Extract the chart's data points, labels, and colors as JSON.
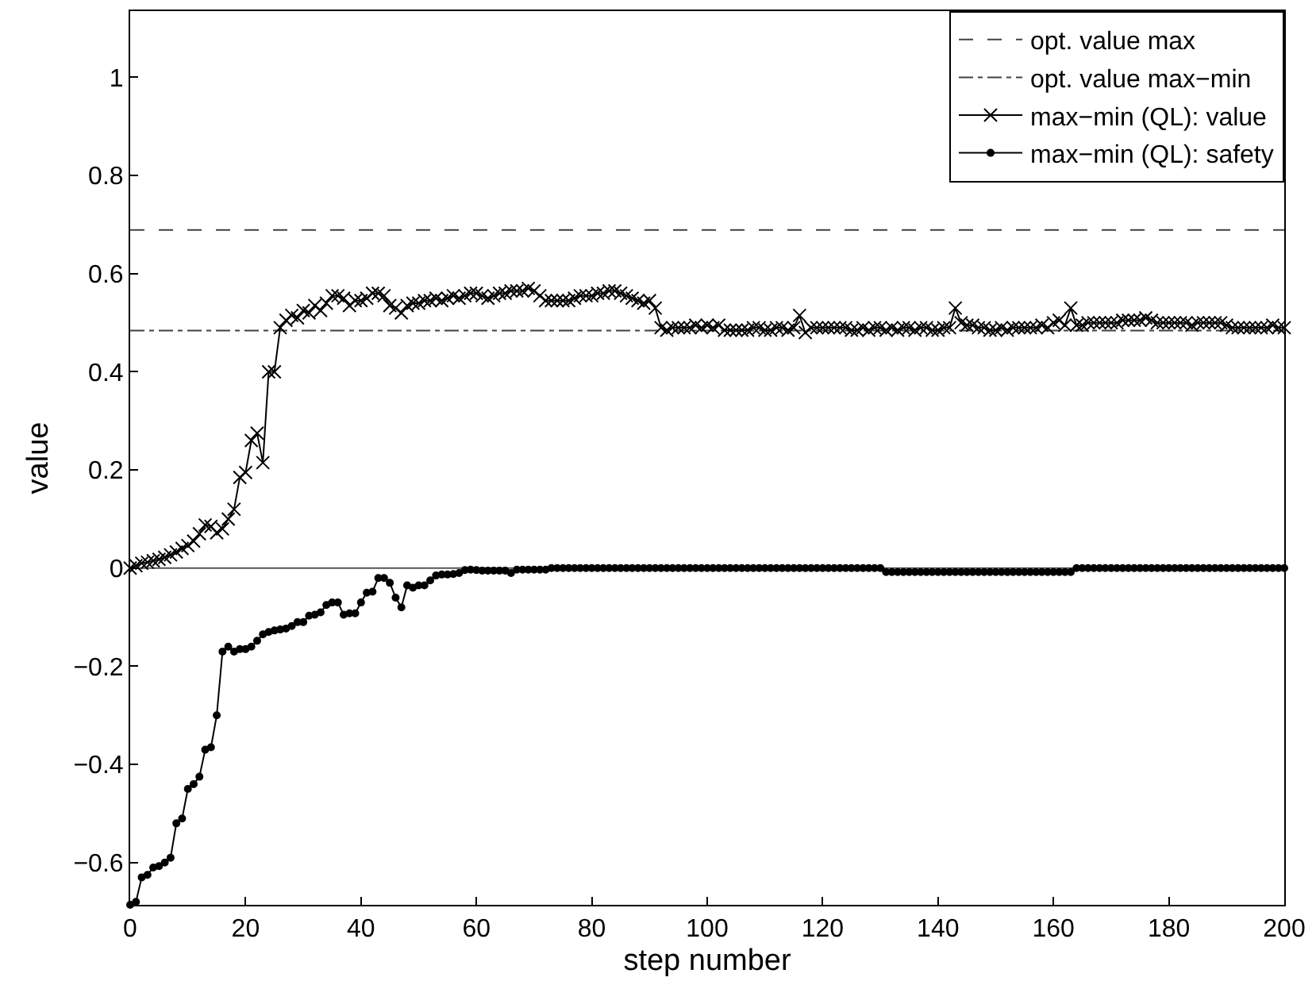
{
  "chart_data": {
    "type": "line",
    "xlabel": "step number",
    "ylabel": "value",
    "xlim": [
      0,
      200
    ],
    "xticks": [
      0,
      20,
      40,
      60,
      80,
      100,
      120,
      140,
      160,
      180,
      200
    ],
    "ylim": [
      -0.686,
      1.135
    ],
    "yticks": [
      {
        "value": -0.6,
        "label": "−0.6"
      },
      {
        "value": -0.4,
        "label": "−0.4"
      },
      {
        "value": -0.2,
        "label": "−0.2"
      },
      0,
      0.2,
      0.4,
      0.6,
      0.8,
      1
    ],
    "grid": false,
    "legend": "top right",
    "ref_lines": [
      {
        "axis": "y",
        "value": 0.689,
        "label": "opt. value max",
        "color": "#404040",
        "line_style": "dashed"
      },
      {
        "axis": "y",
        "value": 0.484,
        "label": "opt. value max−min",
        "color": "#404040",
        "line_style": "dashdot"
      },
      {
        "axis": "y",
        "value": 0,
        "color": "#555555",
        "line_style": "solid"
      }
    ],
    "x": [
      0,
      1,
      2,
      3,
      4,
      5,
      6,
      7,
      8,
      9,
      10,
      11,
      12,
      13,
      14,
      15,
      16,
      17,
      18,
      19,
      20,
      21,
      22,
      23,
      24,
      25,
      26,
      27,
      28,
      29,
      30,
      31,
      32,
      33,
      34,
      35,
      36,
      37,
      38,
      39,
      40,
      41,
      42,
      43,
      44,
      45,
      46,
      47,
      48,
      49,
      50,
      51,
      52,
      53,
      54,
      55,
      56,
      57,
      58,
      59,
      60,
      61,
      62,
      63,
      64,
      65,
      66,
      67,
      68,
      69,
      70,
      71,
      72,
      73,
      74,
      75,
      76,
      77,
      78,
      79,
      80,
      81,
      82,
      83,
      84,
      85,
      86,
      87,
      88,
      89,
      90,
      91,
      92,
      93,
      94,
      95,
      96,
      97,
      98,
      99,
      100,
      101,
      102,
      103,
      104,
      105,
      106,
      107,
      108,
      109,
      110,
      111,
      112,
      113,
      114,
      115,
      116,
      117,
      118,
      119,
      120,
      121,
      122,
      123,
      124,
      125,
      126,
      127,
      128,
      129,
      130,
      131,
      132,
      133,
      134,
      135,
      136,
      137,
      138,
      139,
      140,
      141,
      142,
      143,
      144,
      145,
      146,
      147,
      148,
      149,
      150,
      151,
      152,
      153,
      154,
      155,
      156,
      157,
      158,
      159,
      160,
      161,
      162,
      163,
      164,
      165,
      166,
      167,
      168,
      169,
      170,
      171,
      172,
      173,
      174,
      175,
      176,
      177,
      178,
      179,
      180,
      181,
      182,
      183,
      184,
      185,
      186,
      187,
      188,
      189,
      190,
      191,
      192,
      193,
      194,
      195,
      196,
      197,
      198,
      199,
      200
    ],
    "series": [
      {
        "name": "max−min (QL): value",
        "color": "#000000",
        "marker": "cross",
        "line_style": "solid",
        "values": [
          0,
          0.005,
          0.01,
          0.012,
          0.015,
          0.018,
          0.022,
          0.027,
          0.033,
          0.04,
          0.046,
          0.055,
          0.07,
          0.088,
          0.085,
          0.072,
          0.08,
          0.1,
          0.12,
          0.185,
          0.195,
          0.26,
          0.275,
          0.215,
          0.4,
          0.4,
          0.49,
          0.505,
          0.515,
          0.51,
          0.525,
          0.52,
          0.535,
          0.525,
          0.54,
          0.555,
          0.555,
          0.55,
          0.535,
          0.545,
          0.545,
          0.55,
          0.56,
          0.56,
          0.555,
          0.535,
          0.53,
          0.52,
          0.535,
          0.54,
          0.54,
          0.545,
          0.545,
          0.55,
          0.545,
          0.55,
          0.555,
          0.55,
          0.555,
          0.56,
          0.56,
          0.555,
          0.55,
          0.555,
          0.56,
          0.56,
          0.565,
          0.565,
          0.565,
          0.57,
          0.565,
          0.555,
          0.545,
          0.545,
          0.545,
          0.545,
          0.545,
          0.55,
          0.555,
          0.555,
          0.555,
          0.56,
          0.56,
          0.565,
          0.565,
          0.56,
          0.555,
          0.55,
          0.545,
          0.54,
          0.545,
          0.53,
          0.49,
          0.485,
          0.49,
          0.49,
          0.49,
          0.49,
          0.495,
          0.49,
          0.495,
          0.49,
          0.495,
          0.485,
          0.485,
          0.485,
          0.485,
          0.485,
          0.49,
          0.49,
          0.485,
          0.485,
          0.49,
          0.49,
          0.485,
          0.49,
          0.515,
          0.48,
          0.49,
          0.49,
          0.49,
          0.49,
          0.49,
          0.49,
          0.49,
          0.485,
          0.485,
          0.49,
          0.485,
          0.49,
          0.49,
          0.485,
          0.49,
          0.485,
          0.49,
          0.49,
          0.485,
          0.49,
          0.49,
          0.485,
          0.485,
          0.49,
          0.49,
          0.53,
          0.5,
          0.495,
          0.495,
          0.49,
          0.49,
          0.485,
          0.485,
          0.49,
          0.485,
          0.49,
          0.49,
          0.49,
          0.49,
          0.49,
          0.495,
          0.49,
          0.5,
          0.505,
          0.495,
          0.53,
          0.495,
          0.495,
          0.5,
          0.5,
          0.5,
          0.5,
          0.5,
          0.5,
          0.505,
          0.505,
          0.505,
          0.505,
          0.51,
          0.505,
          0.5,
          0.5,
          0.5,
          0.5,
          0.5,
          0.5,
          0.495,
          0.5,
          0.5,
          0.5,
          0.5,
          0.5,
          0.495,
          0.49,
          0.49,
          0.49,
          0.49,
          0.49,
          0.49,
          0.49,
          0.495,
          0.49,
          0.49
        ]
      },
      {
        "name": "max−min (QL): safety",
        "color": "#000000",
        "marker": "circle",
        "line_style": "solid",
        "values": [
          -0.686,
          -0.68,
          -0.63,
          -0.625,
          -0.61,
          -0.607,
          -0.6,
          -0.59,
          -0.52,
          -0.51,
          -0.45,
          -0.44,
          -0.425,
          -0.37,
          -0.365,
          -0.3,
          -0.17,
          -0.16,
          -0.17,
          -0.165,
          -0.165,
          -0.16,
          -0.148,
          -0.135,
          -0.13,
          -0.127,
          -0.125,
          -0.123,
          -0.118,
          -0.11,
          -0.11,
          -0.097,
          -0.095,
          -0.09,
          -0.075,
          -0.07,
          -0.07,
          -0.095,
          -0.092,
          -0.092,
          -0.07,
          -0.05,
          -0.048,
          -0.02,
          -0.02,
          -0.03,
          -0.06,
          -0.08,
          -0.035,
          -0.04,
          -0.035,
          -0.035,
          -0.025,
          -0.015,
          -0.013,
          -0.013,
          -0.012,
          -0.01,
          -0.004,
          -0.003,
          -0.004,
          -0.005,
          -0.005,
          -0.005,
          -0.005,
          -0.005,
          -0.01,
          -0.003,
          -0.003,
          -0.003,
          -0.003,
          -0.003,
          -0.003,
          0,
          0,
          0,
          0,
          0,
          0,
          0,
          0,
          0,
          0,
          0,
          0,
          0,
          0,
          0,
          0,
          0,
          0,
          0,
          0,
          0,
          0,
          0,
          0,
          0,
          0,
          0,
          0,
          0,
          0,
          0,
          0,
          0,
          0,
          0,
          0,
          0,
          0,
          0,
          0,
          0,
          0,
          0,
          0,
          0,
          0,
          0,
          0,
          0,
          0,
          0,
          0,
          0,
          0,
          0,
          0,
          0,
          0,
          -0.008,
          -0.008,
          -0.008,
          -0.008,
          -0.008,
          -0.008,
          -0.008,
          -0.008,
          -0.008,
          -0.008,
          -0.008,
          -0.008,
          -0.008,
          -0.008,
          -0.008,
          -0.008,
          -0.008,
          -0.008,
          -0.008,
          -0.008,
          -0.008,
          -0.008,
          -0.008,
          -0.008,
          -0.008,
          -0.008,
          -0.008,
          -0.008,
          -0.008,
          -0.008,
          -0.008,
          -0.008,
          -0.008,
          0,
          0,
          0,
          0,
          0,
          0,
          0,
          0,
          0,
          0,
          0,
          0,
          0,
          0,
          0,
          0,
          0,
          0,
          0,
          0,
          0,
          0,
          0,
          0,
          0,
          0,
          0,
          0,
          0,
          0,
          0,
          0,
          0,
          0,
          0,
          0,
          0
        ]
      }
    ]
  }
}
